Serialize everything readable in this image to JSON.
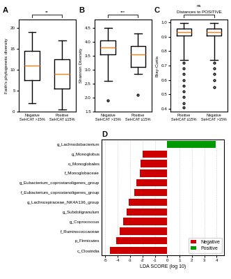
{
  "chart_data": [
    {
      "type": "box",
      "title": "A",
      "ylabel": "Faith's phylogenetic diversity",
      "categories": [
        "Negative\nSeHCAT >15%",
        "Positive\nSeHCAT ≤15%"
      ],
      "boxes": [
        {
          "median": 11,
          "q1": 7.5,
          "q3": 14.5,
          "whislo": 2,
          "whishi": 19,
          "fliers": []
        },
        {
          "median": 9,
          "q1": 5.5,
          "q3": 12.5,
          "whislo": 0.5,
          "whishi": 17,
          "fliers": []
        }
      ],
      "annotations": [
        "**"
      ],
      "ylim": [
        0,
        22
      ],
      "yticks": [
        0,
        5,
        10,
        15,
        20
      ]
    },
    {
      "type": "box",
      "title": "B",
      "ylabel": "Shannon Diversity",
      "categories": [
        "Negative\nSeHCAT >15%",
        "Positive\nSeHCAT ≤15%"
      ],
      "boxes": [
        {
          "median": 3.8,
          "q1": 3.55,
          "q3": 4.05,
          "whislo": 2.6,
          "whishi": 4.5,
          "fliers": [
            1.9
          ]
        },
        {
          "median": 3.55,
          "q1": 3.1,
          "q3": 3.85,
          "whislo": 2.85,
          "whishi": 4.3,
          "fliers": [
            2.1
          ]
        }
      ],
      "annotations": [
        "***"
      ],
      "ylim": [
        1.5,
        4.8
      ],
      "yticks": [
        1.5,
        2.0,
        2.5,
        3.0,
        3.5,
        4.0,
        4.5
      ]
    },
    {
      "type": "box",
      "title": "C",
      "ylabel": "Bray-Curtis",
      "categories": [
        "Positive\nSeHCAT ≤15%",
        "Negative\nSeHCAT >15%"
      ],
      "boxes": [
        {
          "median": 0.935,
          "q1": 0.91,
          "q3": 0.955,
          "whislo": 0.74,
          "whishi": 0.995,
          "fliers": [
            0.72,
            0.68,
            0.64,
            0.6,
            0.56,
            0.52,
            0.48,
            0.44,
            0.41
          ]
        },
        {
          "median": 0.935,
          "q1": 0.91,
          "q3": 0.955,
          "whislo": 0.74,
          "whishi": 0.995,
          "fliers": [
            0.72,
            0.68,
            0.64,
            0.6,
            0.55
          ]
        }
      ],
      "annotations": [
        "Distances to POSITIVE",
        "ns"
      ],
      "ylim": [
        0.38,
        1.02
      ],
      "yticks": [
        0.4,
        0.5,
        0.6,
        0.7,
        0.8,
        0.9,
        1.0
      ]
    },
    {
      "type": "bar",
      "orientation": "horizontal",
      "title": "D",
      "xlabel": "LDA SCORE (log 10)",
      "categories": [
        "g_Lachnodobacterium",
        "g_Monoglobus",
        "o_Monoglobales",
        "f_Monoglobaceae",
        "g_Eubacterium_coprostanoligenes_group",
        "f_Eubacterium_coprostanoligenes_group",
        "g_Lachnospiraceae_NK4A136_group",
        "g_Subdoligranulum",
        "g_Coprococcus",
        "f_Ruminococcaceae",
        "p_Firmicutes",
        "c_Clostridia"
      ],
      "series": [
        {
          "name": "Negative",
          "color": "#cc0000",
          "values": [
            null,
            -2.0,
            -2.15,
            -2.2,
            -2.5,
            -2.65,
            -3.1,
            -3.3,
            -3.55,
            -3.85,
            -4.15,
            -4.65
          ]
        },
        {
          "name": "Positive",
          "color": "#009900",
          "values": [
            3.9,
            null,
            null,
            null,
            null,
            null,
            null,
            null,
            null,
            null,
            null,
            null
          ]
        }
      ],
      "xlim": [
        -5.3,
        4.6
      ],
      "xticks": [
        -5,
        -4,
        -3,
        -2,
        -1,
        0,
        1,
        2,
        3,
        4
      ],
      "grid": true,
      "legend": "lower right"
    }
  ]
}
